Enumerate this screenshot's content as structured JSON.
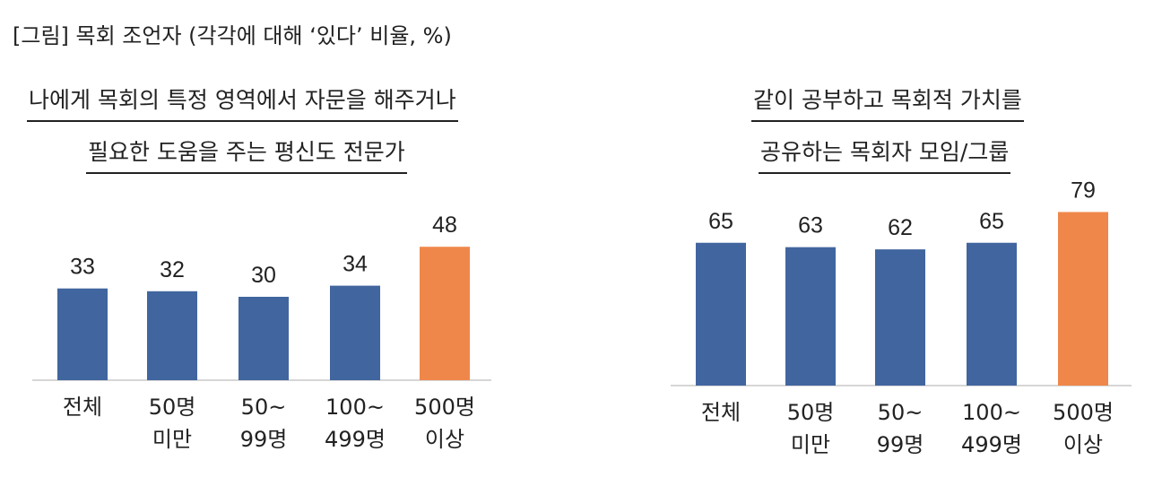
{
  "figure_title": "[그림] 목회 조언자 (각각에 대해 ‘있다’ 비율, %)",
  "chart_data": [
    {
      "type": "bar",
      "title_lines": [
        "나에게 목회의 특정 영역에서 자문을 해주거나",
        "필요한 도움을 주는 평신도 전문가"
      ],
      "categories": [
        [
          "전체"
        ],
        [
          "50명",
          "미만"
        ],
        [
          "50~",
          "99명"
        ],
        [
          "100~",
          "499명"
        ],
        [
          "500명",
          "이상"
        ]
      ],
      "values": [
        33,
        32,
        30,
        34,
        48
      ],
      "colors": [
        "#41659f",
        "#41659f",
        "#41659f",
        "#41659f",
        "#f0874a"
      ]
    },
    {
      "type": "bar",
      "title_lines": [
        "같이 공부하고 목회적 가치를",
        "공유하는 목회자 모임/그룹"
      ],
      "categories": [
        [
          "전체"
        ],
        [
          "50명",
          "미만"
        ],
        [
          "50~",
          "99명"
        ],
        [
          "100~",
          "499명"
        ],
        [
          "500명",
          "이상"
        ]
      ],
      "values": [
        65,
        63,
        62,
        65,
        79
      ],
      "colors": [
        "#41659f",
        "#41659f",
        "#41659f",
        "#41659f",
        "#f0874a"
      ]
    }
  ]
}
